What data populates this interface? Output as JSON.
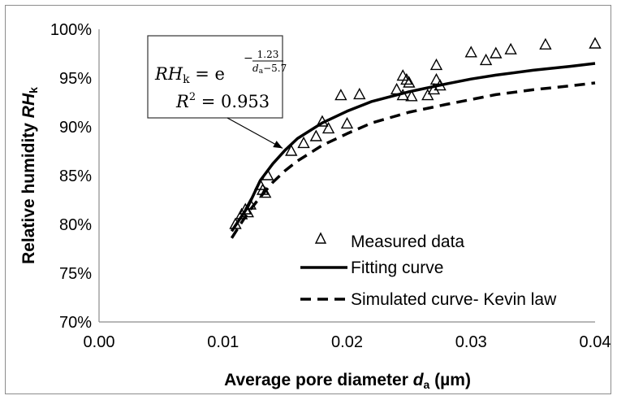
{
  "chart_data": {
    "type": "scatter",
    "title": "",
    "xlabel": "Average pore diameter d_a (µm)",
    "xlabel_parts": {
      "prefix": "Average pore diameter ",
      "var": "d",
      "sub": "a",
      "suffix": " (µm)"
    },
    "ylabel": "Relative humidity RH_k",
    "ylabel_parts": {
      "prefix": "Relative humidity ",
      "var": "RH",
      "sub": "k"
    },
    "xlim": [
      0.0,
      0.04
    ],
    "ylim": [
      70,
      100
    ],
    "x_ticks": [
      "0.00",
      "0.01",
      "0.02",
      "0.03",
      "0.04"
    ],
    "y_ticks": [
      "70%",
      "75%",
      "80%",
      "85%",
      "90%",
      "95%",
      "100%"
    ],
    "grid": false,
    "legend_position": "bottom-right",
    "series": [
      {
        "name": "Measured data",
        "kind": "scatter",
        "marker": "open-triangle",
        "points": [
          [
            0.011,
            80.0
          ],
          [
            0.0115,
            81.0
          ],
          [
            0.0118,
            81.5
          ],
          [
            0.012,
            81.2
          ],
          [
            0.0122,
            82.0
          ],
          [
            0.013,
            84.0
          ],
          [
            0.0132,
            83.5
          ],
          [
            0.0134,
            83.2
          ],
          [
            0.0136,
            85.0
          ],
          [
            0.0155,
            87.5
          ],
          [
            0.0165,
            88.3
          ],
          [
            0.0175,
            89.0
          ],
          [
            0.018,
            90.5
          ],
          [
            0.0185,
            89.8
          ],
          [
            0.0195,
            93.2
          ],
          [
            0.02,
            90.3
          ],
          [
            0.021,
            93.3
          ],
          [
            0.024,
            93.8
          ],
          [
            0.0245,
            95.2
          ],
          [
            0.0245,
            93.2
          ],
          [
            0.0248,
            94.8
          ],
          [
            0.025,
            94.5
          ],
          [
            0.0252,
            93.1
          ],
          [
            0.0265,
            93.2
          ],
          [
            0.027,
            93.8
          ],
          [
            0.0272,
            96.3
          ],
          [
            0.0272,
            94.8
          ],
          [
            0.0275,
            94.2
          ],
          [
            0.03,
            97.6
          ],
          [
            0.0312,
            96.8
          ],
          [
            0.032,
            97.5
          ],
          [
            0.0332,
            97.9
          ],
          [
            0.036,
            98.4
          ],
          [
            0.04,
            98.5
          ]
        ]
      },
      {
        "name": "Fitting curve",
        "kind": "line",
        "style": "solid",
        "points": [
          [
            0.0107,
            79.3
          ],
          [
            0.012,
            81.8
          ],
          [
            0.013,
            84.5
          ],
          [
            0.014,
            86.2
          ],
          [
            0.015,
            87.6
          ],
          [
            0.016,
            88.8
          ],
          [
            0.018,
            90.4
          ],
          [
            0.02,
            91.6
          ],
          [
            0.022,
            92.6
          ],
          [
            0.025,
            93.6
          ],
          [
            0.028,
            94.4
          ],
          [
            0.03,
            94.9
          ],
          [
            0.032,
            95.3
          ],
          [
            0.035,
            95.8
          ],
          [
            0.038,
            96.2
          ],
          [
            0.04,
            96.5
          ]
        ]
      },
      {
        "name": "Simulated curve- Kevin law",
        "kind": "line",
        "style": "dashed",
        "points": [
          [
            0.0107,
            78.6
          ],
          [
            0.012,
            81.2
          ],
          [
            0.013,
            82.8
          ],
          [
            0.014,
            84.3
          ],
          [
            0.015,
            85.5
          ],
          [
            0.016,
            86.5
          ],
          [
            0.018,
            88.1
          ],
          [
            0.02,
            89.3
          ],
          [
            0.022,
            90.4
          ],
          [
            0.025,
            91.5
          ],
          [
            0.028,
            92.3
          ],
          [
            0.03,
            92.8
          ],
          [
            0.032,
            93.3
          ],
          [
            0.035,
            93.8
          ],
          [
            0.038,
            94.2
          ],
          [
            0.04,
            94.5
          ]
        ]
      }
    ],
    "annotation": {
      "equation_lhs": "RH",
      "equation_lhs_sub": "k",
      "equation_eq": " = e",
      "exponent_minus": "−",
      "exponent_num": "1.23",
      "exponent_den_var": "d",
      "exponent_den_sub": "a",
      "exponent_den_rest": "−5.7",
      "r2_label": "R",
      "r2_sup": "2",
      "r2_value": " = 0.953",
      "arrow_points_to": [
        0.0148,
        87.8
      ]
    }
  }
}
